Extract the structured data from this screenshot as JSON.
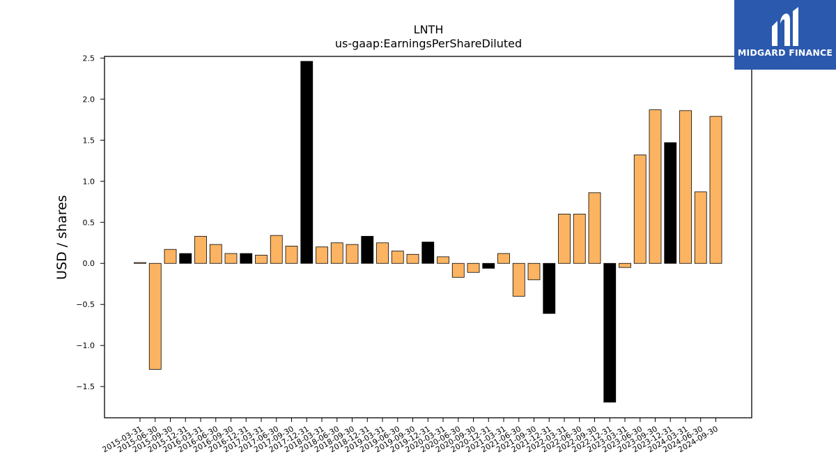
{
  "chart_data": {
    "type": "bar",
    "title": "LNTH",
    "subtitle": "us-gaap:EarningsPerShareDiluted",
    "xlabel": "",
    "ylabel": "USD / shares",
    "ylim": [
      -1.88,
      2.52
    ],
    "yticks": [
      -1.5,
      -1.0,
      -0.5,
      0.0,
      0.5,
      1.0,
      1.5,
      2.0,
      2.5
    ],
    "ytick_labels": [
      "−1.5",
      "−1.0",
      "−0.5",
      "0.0",
      "0.5",
      "1.0",
      "1.5",
      "2.0",
      "2.5"
    ],
    "grid": false,
    "legend": "none",
    "categories": [
      "2015-03-31",
      "2015-06-30",
      "2015-09-30",
      "2015-12-31",
      "2016-03-31",
      "2016-06-30",
      "2016-09-30",
      "2016-12-31",
      "2017-03-31",
      "2017-06-30",
      "2017-09-30",
      "2017-12-31",
      "2018-03-31",
      "2018-06-30",
      "2018-09-30",
      "2018-12-31",
      "2019-03-31",
      "2019-06-30",
      "2019-09-30",
      "2019-12-31",
      "2020-03-31",
      "2020-06-30",
      "2020-09-30",
      "2020-12-31",
      "2021-03-31",
      "2021-06-30",
      "2021-09-30",
      "2021-12-31",
      "2022-03-31",
      "2022-06-30",
      "2022-09-30",
      "2022-12-31",
      "2023-03-31",
      "2023-06-30",
      "2023-09-30",
      "2023-12-31",
      "2024-03-31",
      "2024-06-30",
      "2024-09-30"
    ],
    "values": [
      0.01,
      -1.29,
      0.17,
      0.12,
      0.33,
      0.23,
      0.12,
      0.12,
      0.1,
      0.34,
      0.21,
      2.46,
      0.2,
      0.25,
      0.23,
      0.33,
      0.25,
      0.15,
      0.11,
      0.26,
      0.08,
      -0.17,
      -0.11,
      -0.06,
      0.12,
      -0.4,
      -0.2,
      -0.61,
      0.6,
      0.6,
      0.86,
      -1.69,
      -0.05,
      1.32,
      1.87,
      1.47,
      1.86,
      0.87,
      1.79
    ],
    "highlight": [
      false,
      false,
      false,
      true,
      false,
      false,
      false,
      true,
      false,
      false,
      false,
      true,
      false,
      false,
      false,
      true,
      false,
      false,
      false,
      true,
      false,
      false,
      false,
      true,
      false,
      false,
      false,
      true,
      false,
      false,
      false,
      true,
      false,
      false,
      false,
      true,
      false,
      false,
      false
    ],
    "colors": {
      "bar": "#fdb462",
      "highlight": "#000000",
      "edge": "#000000"
    }
  },
  "logo": {
    "text": "MIDGARD FINANCE",
    "background": "#2b59ad"
  }
}
